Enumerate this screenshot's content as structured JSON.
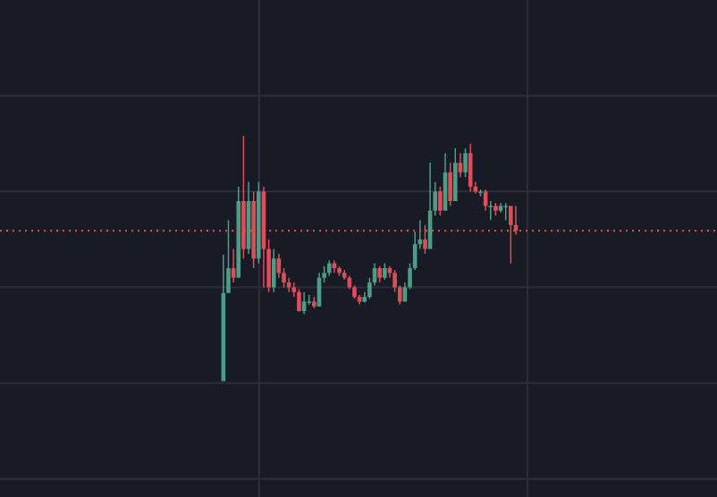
{
  "chart_data": {
    "type": "candlestick",
    "up_color": "#4f9c86",
    "down_color": "#dc4f58",
    "background": "#181a25",
    "grid_color": "#2b2e39",
    "xlim": [
      -44.3,
      97.9
    ],
    "ylim": [
      -0.19,
      5.0
    ],
    "xgrid": [
      7.1,
      60.3
    ],
    "ygrid": [
      0,
      1,
      2,
      3,
      4
    ],
    "open": [
      1.02,
      1.94,
      2.2,
      2.1,
      2.9,
      2.4,
      2.9,
      2.3,
      3.0,
      2.4,
      2.0,
      2.3,
      2.15,
      2.05,
      2.0,
      1.95,
      1.75,
      1.85,
      1.85,
      1.8,
      2.1,
      2.15,
      2.25,
      2.2,
      2.15,
      2.1,
      2.0,
      1.9,
      1.85,
      1.9,
      2.05,
      2.2,
      2.1,
      2.2,
      2.15,
      2.0,
      1.85,
      2.0,
      2.2,
      2.45,
      2.5,
      2.4,
      2.8,
      3.0,
      2.8,
      3.2,
      2.9,
      3.3,
      3.2,
      3.4,
      3.05,
      3.0,
      3.0,
      2.85,
      2.85,
      2.8,
      2.85,
      2.85,
      2.65
    ],
    "high": [
      2.34,
      2.7,
      2.4,
      3.05,
      3.58,
      3.1,
      3.0,
      3.1,
      3.05,
      2.5,
      2.4,
      2.35,
      2.2,
      2.1,
      2.05,
      1.98,
      1.95,
      1.92,
      1.9,
      2.15,
      2.22,
      2.28,
      2.28,
      2.22,
      2.18,
      2.12,
      2.02,
      1.92,
      1.95,
      2.1,
      2.25,
      2.22,
      2.25,
      2.22,
      2.18,
      2.02,
      2.05,
      2.25,
      2.58,
      2.7,
      2.65,
      3.3,
      3.1,
      3.05,
      3.4,
      3.3,
      3.45,
      3.4,
      3.45,
      3.5,
      3.1,
      3.02,
      3.02,
      2.9,
      2.88,
      2.88,
      2.88,
      2.85,
      2.85
    ],
    "low": [
      1.02,
      1.94,
      2.05,
      2.1,
      2.3,
      2.35,
      2.2,
      2.25,
      2.0,
      1.95,
      1.95,
      2.1,
      2.0,
      1.95,
      1.9,
      1.75,
      1.72,
      1.82,
      1.78,
      1.8,
      2.05,
      2.12,
      2.15,
      2.12,
      2.08,
      1.98,
      1.88,
      1.82,
      1.84,
      1.88,
      2.02,
      2.05,
      2.08,
      2.1,
      1.95,
      1.82,
      1.85,
      1.98,
      2.18,
      2.4,
      2.35,
      2.4,
      2.75,
      2.75,
      2.8,
      2.85,
      2.9,
      3.15,
      3.15,
      3.0,
      2.98,
      2.95,
      2.8,
      2.7,
      2.75,
      2.78,
      2.7,
      2.25,
      2.55
    ],
    "close": [
      1.94,
      2.2,
      2.1,
      2.9,
      2.4,
      2.9,
      2.3,
      3.0,
      2.4,
      2.0,
      2.3,
      2.15,
      2.05,
      2.0,
      1.95,
      1.75,
      1.85,
      1.85,
      1.8,
      2.1,
      2.15,
      2.25,
      2.2,
      2.15,
      2.1,
      2.0,
      1.9,
      1.85,
      1.9,
      2.05,
      2.2,
      2.1,
      2.2,
      2.15,
      2.0,
      1.85,
      2.0,
      2.2,
      2.45,
      2.5,
      2.4,
      2.8,
      3.0,
      2.8,
      3.2,
      2.9,
      3.3,
      3.2,
      3.4,
      3.05,
      3.0,
      3.0,
      2.85,
      2.85,
      2.8,
      2.85,
      2.85,
      2.65,
      2.59
    ]
  }
}
